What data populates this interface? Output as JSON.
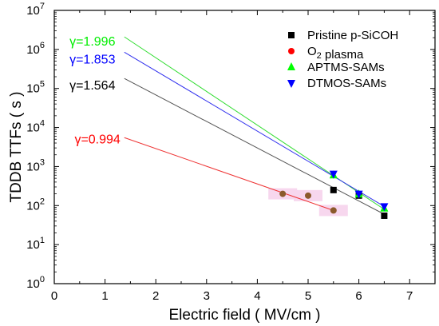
{
  "chart_data": {
    "type": "scatter",
    "xlabel": "Electric field ( MV/cm )",
    "ylabel": "TDDB TTFs ( s )",
    "xlim": [
      0,
      7.5
    ],
    "ylim": [
      1,
      10000000
    ],
    "x_scale": "linear",
    "y_scale": "log",
    "x_ticks": [
      0,
      1,
      2,
      3,
      4,
      5,
      6,
      7
    ],
    "x_tick_labels": [
      "0",
      "1",
      "2",
      "3",
      "4",
      "5",
      "6",
      "7"
    ],
    "y_ticks": [
      1,
      10,
      100,
      1000,
      10000,
      100000,
      1000000,
      10000000
    ],
    "y_tick_labels": [
      {
        "base": "10",
        "exp": "0"
      },
      {
        "base": "10",
        "exp": "1"
      },
      {
        "base": "10",
        "exp": "2"
      },
      {
        "base": "10",
        "exp": "3"
      },
      {
        "base": "10",
        "exp": "4"
      },
      {
        "base": "10",
        "exp": "5"
      },
      {
        "base": "10",
        "exp": "6"
      },
      {
        "base": "10",
        "exp": "7"
      }
    ],
    "legend_position": "top-right",
    "series": [
      {
        "name": "Pristine p-SiCOH",
        "marker": "square",
        "color": "#000000",
        "points": [
          {
            "x": 5.5,
            "y": 250
          },
          {
            "x": 6.0,
            "y": 180
          },
          {
            "x": 6.5,
            "y": 55
          }
        ],
        "fit": {
          "x": [
            1.38,
            6.5
          ],
          "y": [
            180000,
            60
          ],
          "color": "#555555"
        }
      },
      {
        "name": "O2 plasma",
        "name_parts": [
          {
            "t": "O"
          },
          {
            "t": "2",
            "sub": true
          },
          {
            "t": " plasma"
          }
        ],
        "marker": "circle",
        "color": "#ff0000",
        "points": [
          {
            "x": 4.5,
            "y": 200
          },
          {
            "x": 5.0,
            "y": 180
          },
          {
            "x": 5.5,
            "y": 75
          }
        ],
        "point_color": "#8b5a2b",
        "fit": {
          "x": [
            1.38,
            5.5
          ],
          "y": [
            5500,
            75
          ],
          "color": "#ee3333"
        }
      },
      {
        "name": "APTMS-SAMs",
        "marker": "triangle-up",
        "color": "#00ff00",
        "points": [
          {
            "x": 5.5,
            "y": 600
          },
          {
            "x": 6.0,
            "y": 195
          },
          {
            "x": 6.5,
            "y": 85
          }
        ],
        "fit": {
          "x": [
            1.38,
            6.5
          ],
          "y": [
            2100000,
            80
          ],
          "color": "#33dd33"
        }
      },
      {
        "name": "DTMOS-SAMs",
        "marker": "triangle-down",
        "color": "#0000ff",
        "points": [
          {
            "x": 5.5,
            "y": 650
          },
          {
            "x": 6.0,
            "y": 200
          },
          {
            "x": 6.5,
            "y": 95
          }
        ],
        "fit": {
          "x": [
            1.38,
            6.5
          ],
          "y": [
            850000,
            95
          ],
          "color": "#3333ee"
        }
      }
    ],
    "annotations": [
      {
        "text": "γ=1.996",
        "color": "#00ee00",
        "x": 0.3,
        "y": 1600000
      },
      {
        "text": "γ=1.853",
        "color": "#0000ff",
        "x": 0.3,
        "y": 550000
      },
      {
        "text": "γ=1.564",
        "color": "#000000",
        "x": 0.3,
        "y": 120000
      },
      {
        "text": "γ=0.994",
        "color": "#ff0000",
        "x": 0.4,
        "y": 5000
      }
    ]
  }
}
